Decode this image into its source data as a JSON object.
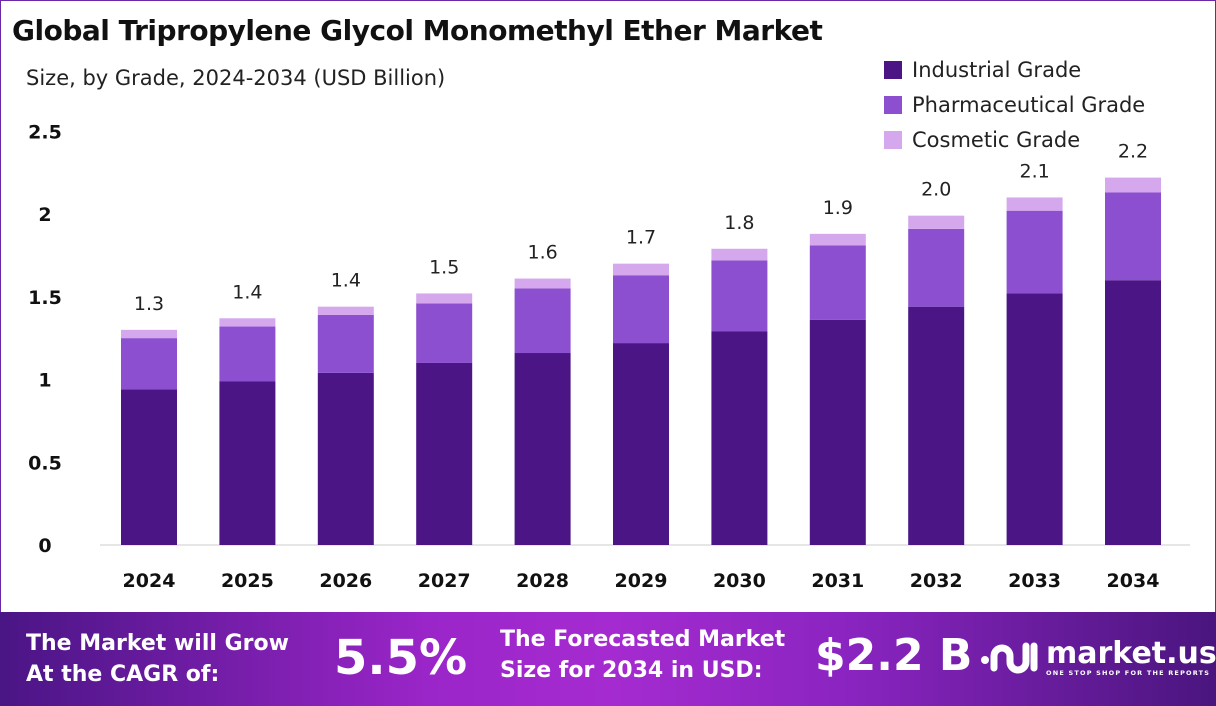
{
  "chart_data": {
    "type": "bar",
    "stacked": true,
    "title": "Global Tripropylene Glycol Monomethyl Ether Market",
    "subtitle": "Size, by Grade, 2024-2034 (USD Billion)",
    "categories": [
      "2024",
      "2025",
      "2026",
      "2027",
      "2028",
      "2029",
      "2030",
      "2031",
      "2032",
      "2033",
      "2034"
    ],
    "series": [
      {
        "name": "Industrial Grade",
        "color": "#4b1585",
        "values": [
          0.94,
          0.99,
          1.04,
          1.1,
          1.16,
          1.22,
          1.29,
          1.36,
          1.44,
          1.52,
          1.6
        ]
      },
      {
        "name": "Pharmaceutical Grade",
        "color": "#8b4fd0",
        "values": [
          0.31,
          0.33,
          0.35,
          0.36,
          0.39,
          0.41,
          0.43,
          0.45,
          0.47,
          0.5,
          0.53
        ]
      },
      {
        "name": "Cosmetic Grade",
        "color": "#d5a8ee",
        "values": [
          0.05,
          0.05,
          0.05,
          0.06,
          0.06,
          0.07,
          0.07,
          0.07,
          0.08,
          0.08,
          0.09
        ]
      }
    ],
    "totals_labels": [
      "1.3",
      "1.4",
      "1.4",
      "1.5",
      "1.6",
      "1.7",
      "1.8",
      "1.9",
      "2.0",
      "2.1",
      "2.2"
    ],
    "yticks": [
      "0",
      "0.5",
      "1",
      "1.5",
      "2",
      "2.5"
    ],
    "ylim": [
      0,
      2.5
    ],
    "grid": false,
    "legend_position": "top-right"
  },
  "footer": {
    "cagr_text_line1": "The Market will Grow",
    "cagr_text_line2": "At the CAGR of:",
    "cagr_value": "5.5%",
    "forecast_text_line1": "The Forecasted Market",
    "forecast_text_line2": "Size for 2034 in USD:",
    "forecast_value": "$2.2 B",
    "logo_name": "market.us",
    "logo_tagline": "ONE STOP SHOP FOR THE REPORTS"
  }
}
